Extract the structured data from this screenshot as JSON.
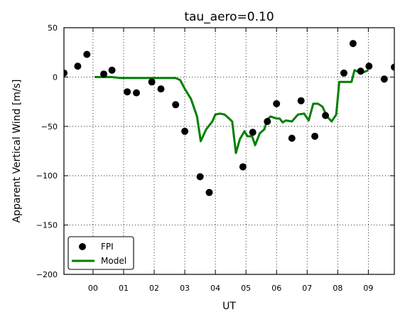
{
  "chart_data": {
    "type": "scatter",
    "title": "tau_aero=0.10",
    "xlabel": "UT",
    "ylabel": "Apparent Vertical Wind [m/s]",
    "xlim": [
      23.05,
      33.85
    ],
    "ylim": [
      -200,
      50
    ],
    "xticks": [
      24,
      25,
      26,
      27,
      28,
      29,
      30,
      31,
      32,
      33
    ],
    "xtick_labels": [
      "00",
      "01",
      "02",
      "03",
      "04",
      "05",
      "06",
      "07",
      "08",
      "09"
    ],
    "yticks": [
      50,
      0,
      -50,
      -100,
      -150,
      -200
    ],
    "ytick_labels": [
      "50",
      "0",
      "−50",
      "−100",
      "−150",
      "−200"
    ],
    "grid": true,
    "legend_position": "lower-left",
    "series": [
      {
        "name": "FPI",
        "kind": "scatter",
        "color": "#000000",
        "x": [
          23.05,
          23.5,
          23.8,
          24.35,
          24.62,
          25.12,
          25.42,
          25.92,
          26.22,
          26.7,
          27.0,
          27.5,
          27.8,
          28.9,
          29.22,
          29.7,
          30.0,
          30.5,
          30.8,
          31.25,
          31.6,
          32.2,
          32.5,
          32.75,
          33.02,
          33.52,
          33.85
        ],
        "y": [
          4,
          11,
          23,
          3,
          7,
          -15,
          -16,
          -5,
          -12,
          -28,
          -55,
          -101,
          -117,
          -91,
          -56,
          -45,
          -27,
          -62,
          -24,
          -60,
          -39,
          4,
          34,
          6,
          11,
          -2,
          10
        ]
      },
      {
        "name": "Model",
        "kind": "line",
        "color": "#008000",
        "x": [
          24.05,
          24.3,
          24.6,
          24.9,
          25.1,
          25.3,
          25.5,
          25.7,
          25.9,
          26.1,
          26.3,
          26.5,
          26.7,
          26.85,
          27.0,
          27.2,
          27.4,
          27.52,
          27.7,
          27.9,
          28.0,
          28.15,
          28.3,
          28.45,
          28.55,
          28.67,
          28.8,
          28.95,
          29.05,
          29.2,
          29.3,
          29.45,
          29.6,
          29.7,
          29.8,
          30.0,
          30.1,
          30.2,
          30.3,
          30.5,
          30.7,
          30.9,
          31.05,
          31.2,
          31.35,
          31.5,
          31.65,
          31.8,
          31.95,
          32.05,
          32.25,
          32.45,
          32.55,
          32.7,
          32.85,
          33.0
        ],
        "y": [
          0,
          0,
          0,
          -1,
          -1,
          -1,
          -1,
          -1,
          -1,
          -1,
          -1,
          -1,
          -1,
          -3,
          -12,
          -22,
          -40,
          -65,
          -53,
          -45,
          -38,
          -37,
          -38,
          -42,
          -45,
          -77,
          -63,
          -55,
          -60,
          -60,
          -69,
          -57,
          -53,
          -43,
          -40,
          -42,
          -42,
          -46,
          -44,
          -45,
          -38,
          -37,
          -44,
          -27,
          -27,
          -30,
          -40,
          -45,
          -38,
          -5,
          -5,
          -5,
          7,
          5,
          5,
          7
        ]
      }
    ]
  }
}
